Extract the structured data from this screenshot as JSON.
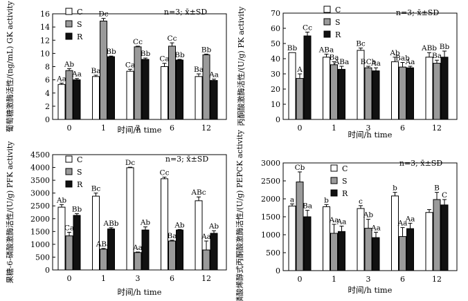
{
  "chart_data": [
    {
      "type": "bar",
      "ylabel": "葡萄糖激酶活性/(ng/mL) GK activity",
      "xlabel": "时间/h time",
      "note": "n=3; x̄±SD",
      "categories": [
        "0",
        "1",
        "3",
        "6",
        "12"
      ],
      "ylim": [
        0,
        16
      ],
      "yticks": [
        "0",
        "2",
        "4",
        "6",
        "8",
        "10",
        "12",
        "14",
        "16"
      ],
      "legend": [
        "C",
        "S",
        "R"
      ],
      "legend_position": "top-left",
      "series": [
        {
          "name": "C",
          "values": [
            5.3,
            6.5,
            7.3,
            8.0,
            6.5
          ],
          "errors": [
            0.2,
            0.2,
            0.3,
            0.5,
            0.4
          ],
          "labels": [
            "Aa",
            "Ba",
            "Ca",
            "Ca",
            "Ba"
          ]
        },
        {
          "name": "S",
          "values": [
            7.4,
            14.9,
            11.0,
            11.1,
            9.8
          ],
          "errors": [
            0.3,
            0.4,
            0.1,
            0.5,
            0.1
          ],
          "labels": [
            "Ab",
            "Dc",
            "Cc",
            "Cc",
            "Bb"
          ]
        },
        {
          "name": "R",
          "values": [
            6.0,
            9.5,
            9.1,
            9.0,
            5.9
          ],
          "errors": [
            0.2,
            0.1,
            0.2,
            0.1,
            0.2
          ],
          "labels": [
            "Aa",
            "Bb",
            "Bb",
            "Bb",
            "Aa"
          ]
        }
      ]
    },
    {
      "type": "bar",
      "ylabel": "丙酮酸激酶活性/(U/g) PK activity",
      "xlabel": "时间/h time",
      "note": "n=3; x̄±SD",
      "categories": [
        "0",
        "1",
        "3",
        "6",
        "12"
      ],
      "ylim": [
        0,
        70
      ],
      "yticks": [
        "0",
        "10",
        "20",
        "30",
        "40",
        "50",
        "60",
        "70"
      ],
      "legend": [
        "C",
        "S",
        "R"
      ],
      "legend_position": "top-right",
      "series": [
        {
          "name": "C",
          "values": [
            44,
            41,
            45.5,
            38,
            41
          ],
          "errors": [
            0,
            2,
            1.5,
            3,
            3
          ],
          "labels": [
            "Bb",
            "ABa",
            "Bc",
            "Ab",
            "ABb"
          ]
        },
        {
          "name": "S",
          "values": [
            27,
            36,
            34,
            34.5,
            37
          ],
          "errors": [
            3,
            2,
            1,
            3,
            2
          ],
          "labels": [
            "A",
            "Ba",
            "BCb",
            "Bab",
            "Ba"
          ]
        },
        {
          "name": "R",
          "values": [
            55,
            33,
            32,
            34,
            41
          ],
          "errors": [
            2.5,
            2,
            2,
            1,
            4
          ],
          "labels": [
            "Cc",
            "ABa",
            "Aa",
            "Aa",
            "Bb"
          ]
        }
      ]
    },
    {
      "type": "bar",
      "ylabel": "果糖-6-磷酸激酶活性/(U/g) PFK activity",
      "xlabel": "时间/h time",
      "note": "n=3; x̄±SD",
      "categories": [
        "0",
        "1",
        "3",
        "6",
        "12"
      ],
      "ylim": [
        0,
        4500
      ],
      "yticks": [
        "0",
        "500",
        "1000",
        "1500",
        "2000",
        "2500",
        "3000",
        "3500",
        "4000",
        "4500"
      ],
      "legend": [
        "C",
        "S",
        "R"
      ],
      "legend_position": "top-left",
      "series": [
        {
          "name": "C",
          "values": [
            2450,
            2880,
            3990,
            3560,
            2700
          ],
          "errors": [
            100,
            120,
            20,
            60,
            150
          ],
          "labels": [
            "Ab",
            "Bc",
            "Dc",
            "Cc",
            "ABc"
          ]
        },
        {
          "name": "S",
          "values": [
            1330,
            810,
            680,
            1130,
            780
          ],
          "errors": [
            140,
            30,
            20,
            30,
            350
          ],
          "labels": [
            "Ca",
            "ABa",
            "Aa",
            "Ba",
            "Aa"
          ]
        },
        {
          "name": "R",
          "values": [
            2130,
            1600,
            1560,
            1560,
            1430
          ],
          "errors": [
            70,
            50,
            120,
            20,
            100
          ],
          "labels": [
            "Bb",
            "ABb",
            "Ab",
            "Ab",
            "Ab"
          ]
        }
      ]
    },
    {
      "type": "bar",
      "ylabel": "磷酸烯醇式丙酮酸激酶活性/(U/g) PEPCK activity",
      "xlabel": "时间/h time",
      "note": "n=3; x̄±SD",
      "categories": [
        "0",
        "1",
        "3",
        "6",
        "12"
      ],
      "ylim": [
        0,
        3000
      ],
      "yticks": [
        "0",
        "500",
        "1000",
        "1500",
        "2000",
        "2500",
        "3000"
      ],
      "legend": [
        "C",
        "S",
        "R"
      ],
      "legend_position": "top-right",
      "series": [
        {
          "name": "C",
          "values": [
            1800,
            1780,
            1730,
            2080,
            1620
          ],
          "errors": [
            60,
            60,
            80,
            100,
            80
          ],
          "labels": [
            "a",
            "b",
            "c",
            "b",
            ""
          ]
        },
        {
          "name": "S",
          "values": [
            2470,
            1040,
            1180,
            950,
            1980
          ],
          "errors": [
            280,
            250,
            250,
            250,
            200
          ],
          "labels": [
            "Cb",
            "Aa",
            "Ab",
            "Aa",
            "B"
          ]
        },
        {
          "name": "R",
          "values": [
            1500,
            1090,
            920,
            1170,
            1830
          ],
          "errors": [
            180,
            150,
            150,
            150,
            150
          ],
          "labels": [
            "Ba",
            "Aa",
            "Aa",
            "Aa",
            "C"
          ]
        }
      ]
    }
  ]
}
